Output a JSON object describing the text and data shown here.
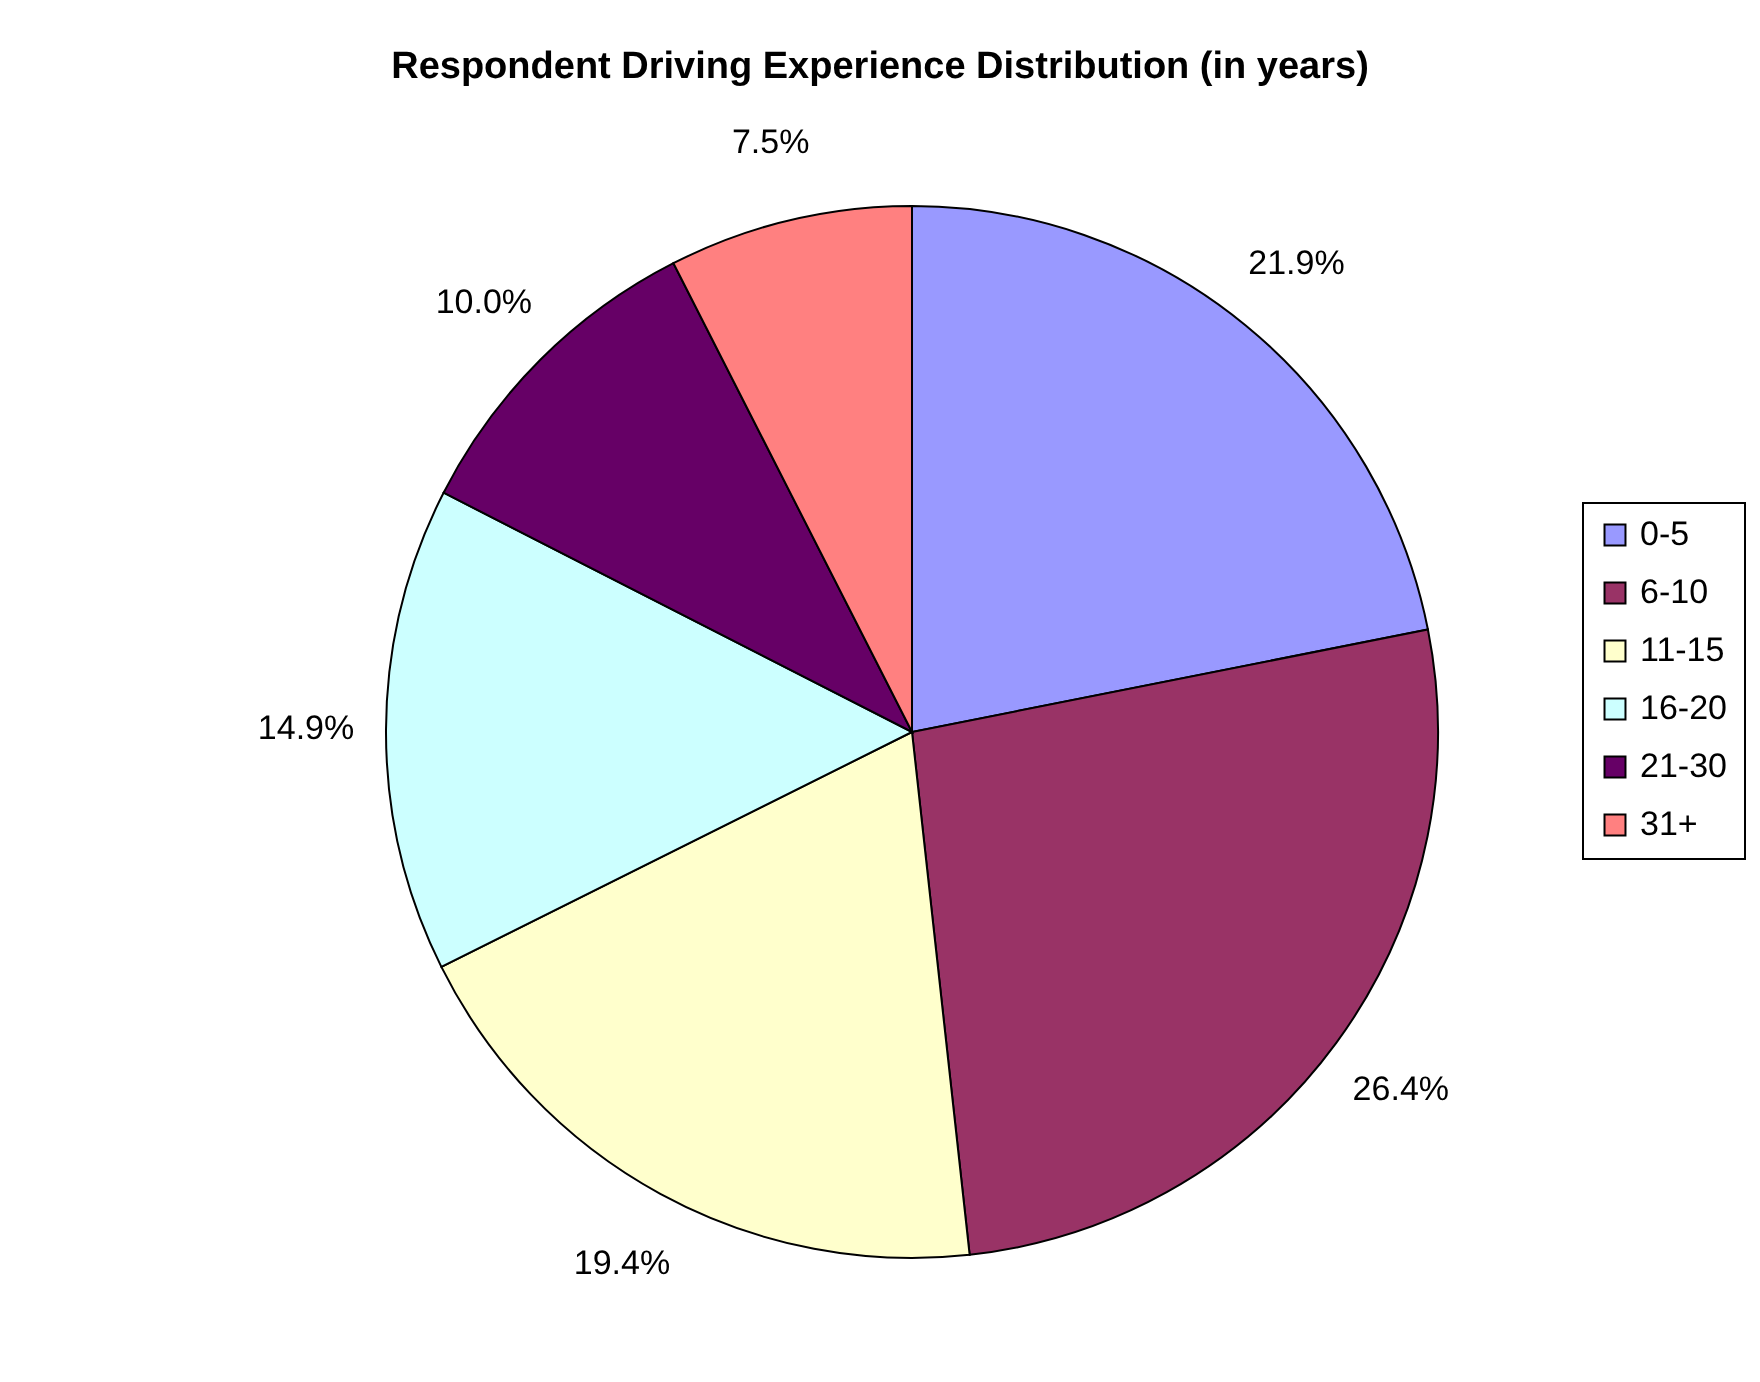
{
  "chart_data": {
    "type": "pie",
    "title": "Respondent Driving Experience Distribution (in years)",
    "categories": [
      "0-5",
      "6-10",
      "11-15",
      "16-20",
      "21-30",
      "31+"
    ],
    "values": [
      21.9,
      26.4,
      19.4,
      14.9,
      10.0,
      7.5
    ],
    "colors": [
      "#9999ff",
      "#993366",
      "#ffffcc",
      "#ccffff",
      "#660066",
      "#ff8080"
    ],
    "value_labels": [
      "21.9%",
      "26.4%",
      "19.4%",
      "14.9%",
      "10.0%",
      "7.5%"
    ],
    "legend": "right"
  }
}
